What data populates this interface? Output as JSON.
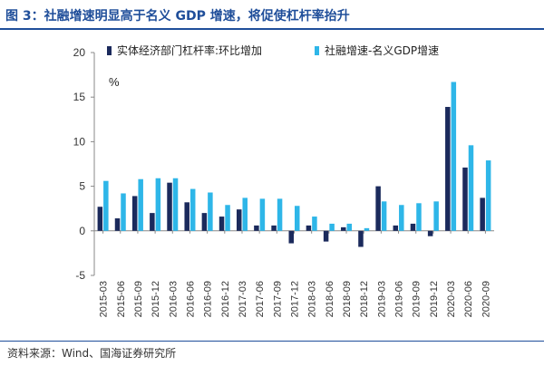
{
  "figure": {
    "title": "图 3：社融增速明显高于名义 GDP 增速，将促使杠杆率抬升",
    "source": "资料来源：Wind、国海证券研究所"
  },
  "chart_data": {
    "type": "bar",
    "categories": [
      "2015-03",
      "2015-06",
      "2015-09",
      "2015-12",
      "2016-03",
      "2016-06",
      "2016-09",
      "2016-12",
      "2017-03",
      "2017-06",
      "2017-09",
      "2017-12",
      "2018-03",
      "2018-06",
      "2018-09",
      "2018-12",
      "2019-03",
      "2019-06",
      "2019-09",
      "2019-12",
      "2020-03",
      "2020-06",
      "2020-09"
    ],
    "series": [
      {
        "name": "实体经济部门杠杆率:环比增加",
        "color": "#1b2a5c",
        "values": [
          2.7,
          1.4,
          3.9,
          2.0,
          5.4,
          3.2,
          2.0,
          1.6,
          2.4,
          0.6,
          0.6,
          -1.4,
          0.6,
          -1.2,
          0.4,
          -1.8,
          5.0,
          0.6,
          0.8,
          -0.6,
          13.9,
          7.1,
          3.7
        ]
      },
      {
        "name": "社融增速-名义GDP增速",
        "color": "#2eb6e8",
        "values": [
          5.6,
          4.2,
          5.8,
          5.9,
          5.9,
          4.7,
          4.3,
          2.9,
          3.7,
          3.6,
          3.6,
          2.8,
          1.6,
          0.8,
          0.8,
          0.3,
          3.3,
          2.9,
          3.1,
          3.3,
          16.7,
          9.6,
          7.9
        ]
      }
    ],
    "unit": "%",
    "ylim": [
      -5,
      20
    ],
    "yticks": [
      -5,
      0,
      5,
      10,
      15,
      20
    ],
    "legend_position": "top",
    "grid": false
  }
}
